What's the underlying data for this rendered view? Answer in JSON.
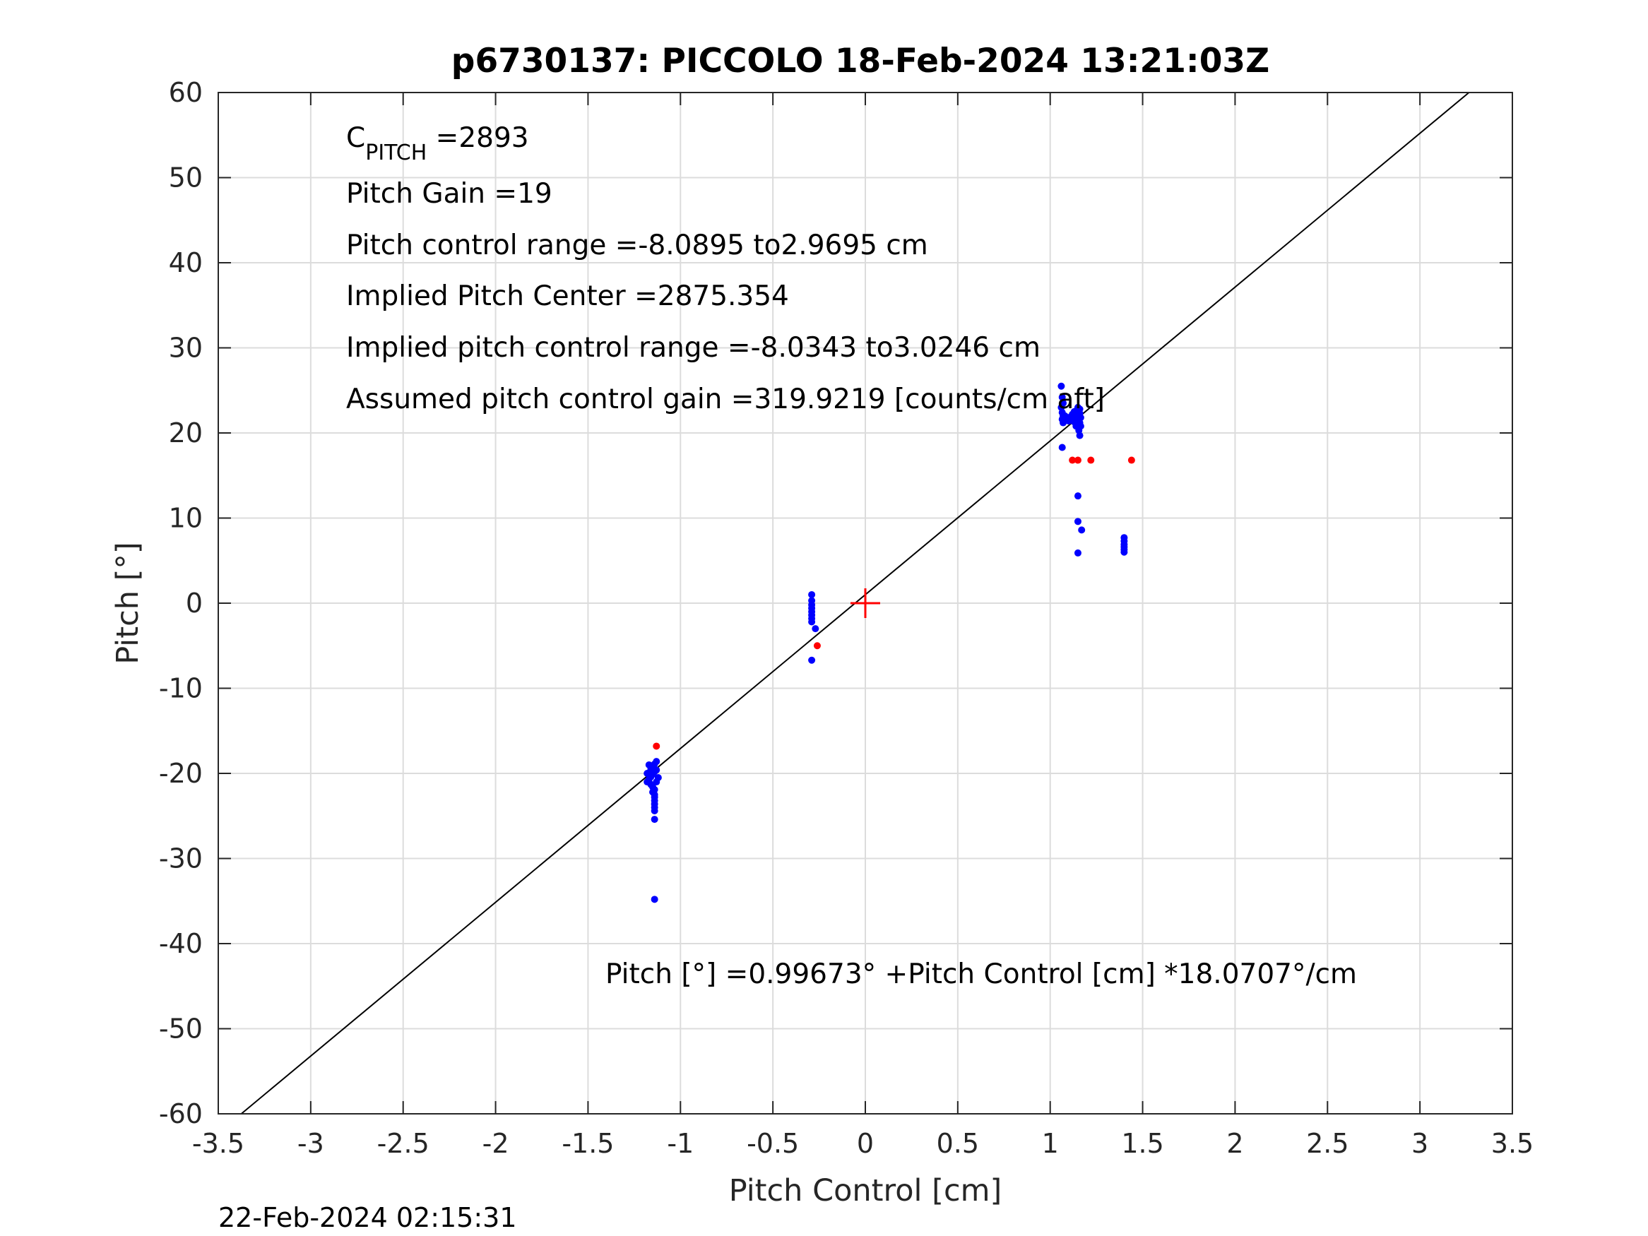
{
  "chart_data": {
    "type": "scatter",
    "title": "p6730137: PICCOLO 18-Feb-2024 13:21:03Z",
    "xlabel": "Pitch Control [cm]",
    "ylabel": "Pitch [°]",
    "xlim": [
      -3.5,
      3.5
    ],
    "ylim": [
      -60,
      60
    ],
    "grid": true,
    "xticks": [
      -3.5,
      -3,
      -2.5,
      -2,
      -1.5,
      -1,
      -0.5,
      0,
      0.5,
      1,
      1.5,
      2,
      2.5,
      3,
      3.5
    ],
    "xtick_labels": [
      "-3.5",
      "-3",
      "-2.5",
      "-2",
      "-1.5",
      "-1",
      "-0.5",
      "0",
      "0.5",
      "1",
      "1.5",
      "2",
      "2.5",
      "3",
      "3.5"
    ],
    "yticks": [
      -60,
      -50,
      -40,
      -30,
      -20,
      -10,
      0,
      10,
      20,
      30,
      40,
      50,
      60
    ],
    "ytick_labels": [
      "-60",
      "-50",
      "-40",
      "-30",
      "-20",
      "-10",
      "0",
      "10",
      "20",
      "30",
      "40",
      "50",
      "60"
    ],
    "fit_line": {
      "intercept": 0.99673,
      "slope": 18.0707,
      "color": "#000000"
    },
    "center_marker": {
      "x": 0,
      "y": 0,
      "color": "#ff0000"
    },
    "series": [
      {
        "color": "#0000ff",
        "points": [
          [
            1.06,
            25.5
          ],
          [
            1.065,
            24.2
          ],
          [
            1.07,
            23.5
          ],
          [
            1.06,
            23.0
          ],
          [
            1.065,
            22.4
          ],
          [
            1.07,
            22.0
          ],
          [
            1.065,
            21.6
          ],
          [
            1.07,
            21.2
          ],
          [
            1.08,
            21.8
          ],
          [
            1.09,
            21.5
          ],
          [
            1.1,
            21.7
          ],
          [
            1.11,
            21.9
          ],
          [
            1.12,
            22.2
          ],
          [
            1.13,
            22.5
          ],
          [
            1.14,
            22.0
          ],
          [
            1.15,
            21.6
          ],
          [
            1.16,
            22.8
          ],
          [
            1.15,
            23.0
          ],
          [
            1.16,
            21.2
          ],
          [
            1.14,
            20.8
          ],
          [
            1.155,
            20.3
          ],
          [
            1.16,
            19.7
          ],
          [
            1.165,
            20.8
          ],
          [
            1.15,
            21.0
          ],
          [
            1.1,
            21.4
          ],
          [
            1.12,
            21.6
          ],
          [
            1.13,
            21.3
          ],
          [
            1.14,
            22.6
          ],
          [
            1.16,
            22.3
          ],
          [
            1.165,
            21.8
          ],
          [
            1.155,
            22.5
          ],
          [
            1.08,
            22.0
          ],
          [
            1.065,
            18.3
          ],
          [
            1.15,
            12.6
          ],
          [
            1.15,
            9.6
          ],
          [
            1.17,
            8.6
          ],
          [
            1.15,
            5.9
          ],
          [
            1.4,
            7.7
          ],
          [
            1.4,
            7.3
          ],
          [
            1.4,
            6.9
          ],
          [
            1.4,
            6.6
          ],
          [
            1.4,
            6.3
          ],
          [
            1.4,
            6.0
          ],
          [
            -0.29,
            1.0
          ],
          [
            -0.29,
            0.3
          ],
          [
            -0.29,
            -0.2
          ],
          [
            -0.29,
            -0.6
          ],
          [
            -0.29,
            -1.0
          ],
          [
            -0.29,
            -1.4
          ],
          [
            -0.29,
            -1.8
          ],
          [
            -0.29,
            -2.2
          ],
          [
            -0.27,
            -3.0
          ],
          [
            -0.29,
            -6.7
          ],
          [
            -1.13,
            -18.6
          ],
          [
            -1.14,
            -18.9
          ],
          [
            -1.15,
            -19.2
          ],
          [
            -1.16,
            -19.5
          ],
          [
            -1.14,
            -19.8
          ],
          [
            -1.15,
            -20.1
          ],
          [
            -1.16,
            -20.4
          ],
          [
            -1.17,
            -20.7
          ],
          [
            -1.18,
            -21.0
          ],
          [
            -1.16,
            -21.3
          ],
          [
            -1.15,
            -21.6
          ],
          [
            -1.14,
            -21.9
          ],
          [
            -1.15,
            -22.2
          ],
          [
            -1.14,
            -22.5
          ],
          [
            -1.14,
            -22.8
          ],
          [
            -1.14,
            -23.2
          ],
          [
            -1.14,
            -23.6
          ],
          [
            -1.14,
            -24.0
          ],
          [
            -1.14,
            -24.4
          ],
          [
            -1.14,
            -25.4
          ],
          [
            -1.14,
            -34.8
          ],
          [
            -1.17,
            -19.0
          ],
          [
            -1.18,
            -20.0
          ],
          [
            -1.13,
            -21.0
          ],
          [
            -1.12,
            -20.5
          ],
          [
            -1.13,
            -19.6
          ]
        ]
      },
      {
        "color": "#ff0000",
        "points": [
          [
            1.12,
            16.8
          ],
          [
            1.15,
            16.8
          ],
          [
            1.22,
            16.8
          ],
          [
            1.44,
            16.8
          ],
          [
            -0.26,
            -5.0
          ],
          [
            -1.13,
            -16.8
          ]
        ]
      }
    ],
    "annotations": [
      {
        "main": "C",
        "sub": "PITCH",
        "rest": " =2893"
      },
      {
        "main": "Pitch Gain =19"
      },
      {
        "main": "Pitch control range =-8.0895 to2.9695 cm"
      },
      {
        "main": "Implied Pitch Center =2875.354"
      },
      {
        "main": "Implied pitch control range =-8.0343 to3.0246 cm"
      },
      {
        "main": "Assumed pitch control gain =319.9219 [counts/cm aft]"
      }
    ],
    "equation": "Pitch [°] =0.99673° +Pitch Control [cm] *18.0707°/cm"
  },
  "footer": {
    "timestamp": "22-Feb-2024 02:15:31"
  }
}
